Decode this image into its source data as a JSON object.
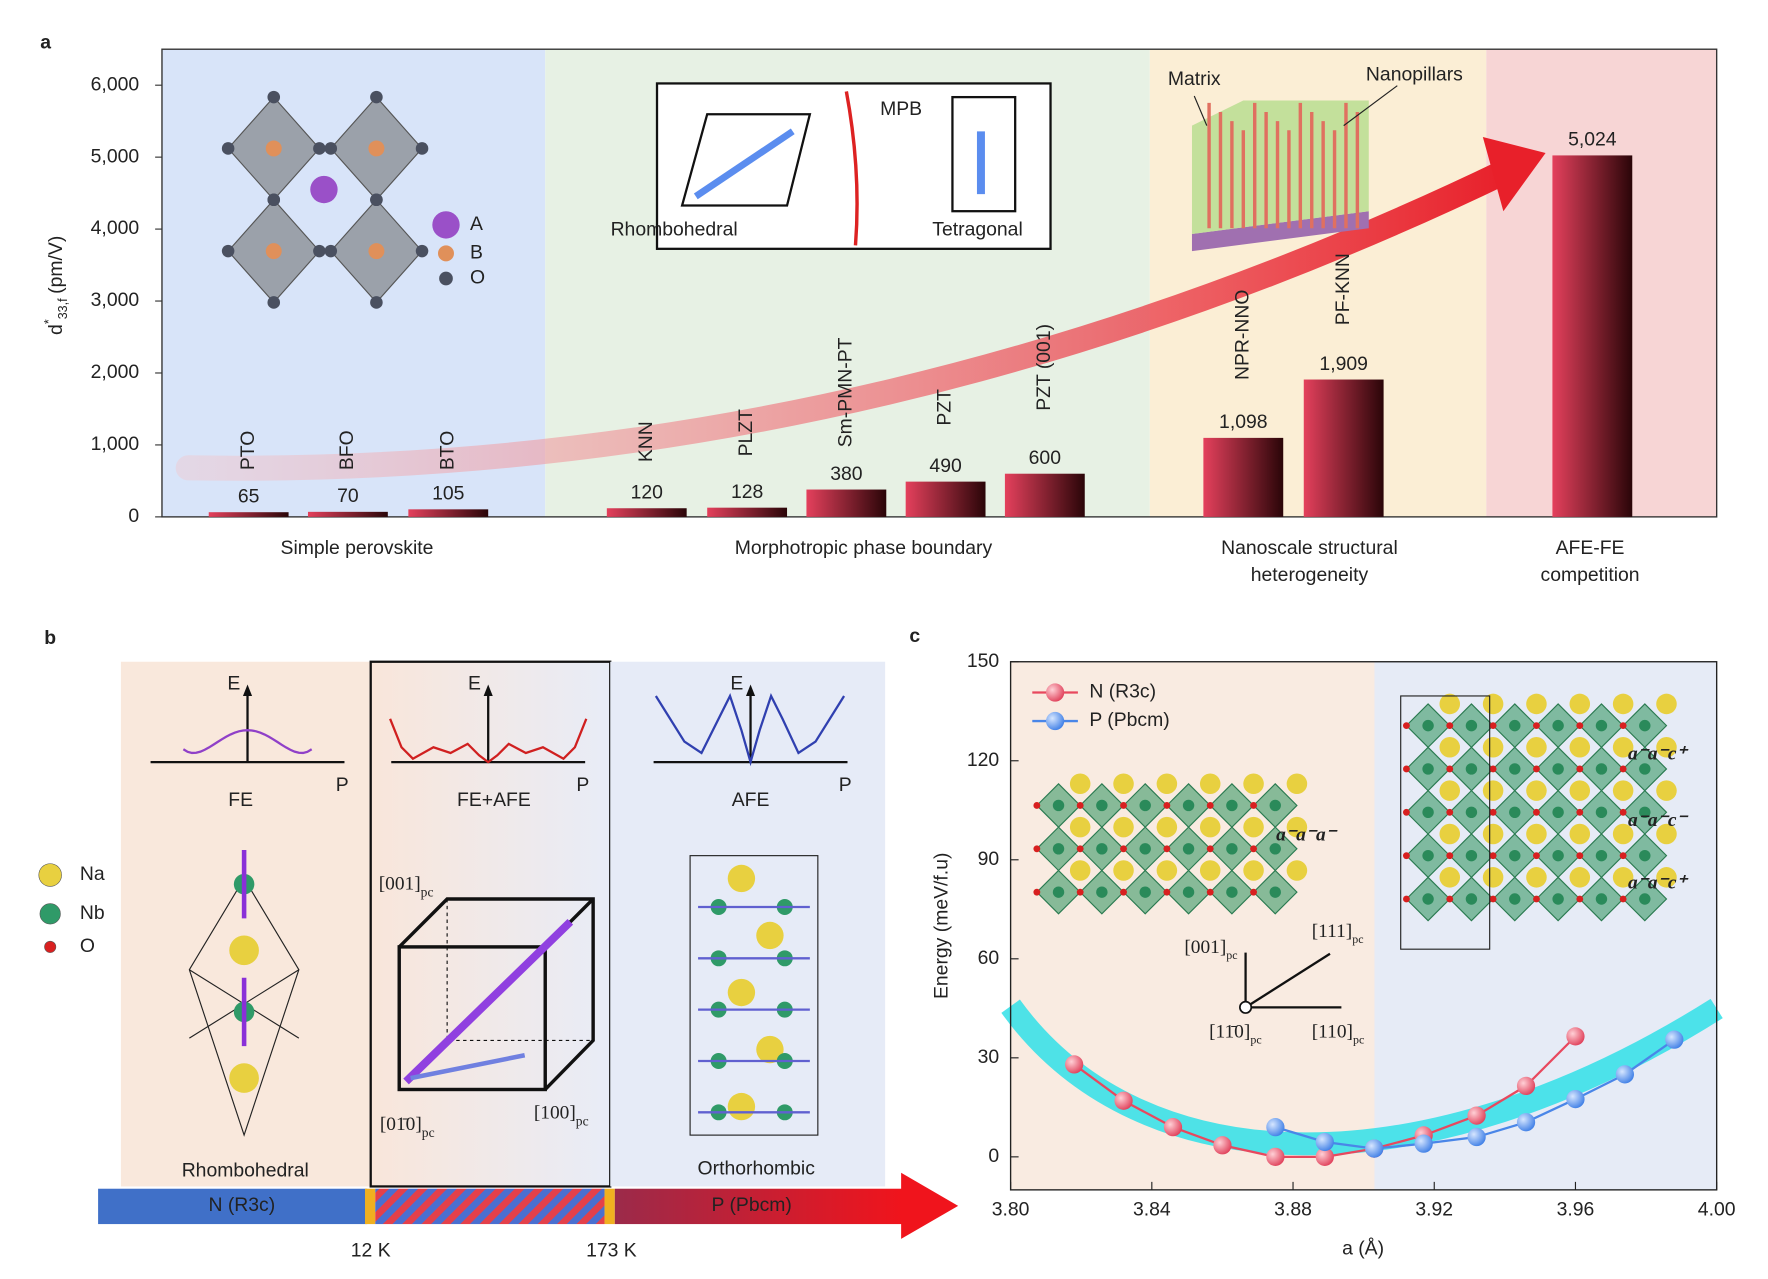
{
  "panel_labels": [
    "a",
    "b",
    "c"
  ],
  "chart_data": [
    {
      "type": "bar",
      "ylabel": {
        "symbol": "d",
        "sup": "*",
        "sub": "33,f",
        "unit": "(pm/V)"
      },
      "categories": [
        "PTO",
        "BFO",
        "BTO",
        "KNN",
        "PLZT",
        "Sm-PMN-PT",
        "PZT",
        "PZT (001)",
        "NPR-NNO",
        "PF-KNN",
        null
      ],
      "values": [
        65,
        70,
        105,
        120,
        128,
        380,
        490,
        600,
        1098,
        1909,
        5024
      ],
      "value_labels": [
        "65",
        "70",
        "105",
        "120",
        "128",
        "380",
        "490",
        "600",
        "1,098",
        "1,909",
        "5,024"
      ],
      "color": "#e4405c",
      "groups": [
        {
          "label": [
            "Simple perovskite"
          ],
          "color": "#d8e4f9"
        },
        {
          "label": [
            "Morphotropic phase boundary"
          ],
          "color": "#e7f1e4"
        },
        {
          "label": [
            "Nanoscale structural",
            "heterogeneity"
          ],
          "color": "#fbeed5"
        },
        {
          "label": [
            "AFE-FE",
            "competition"
          ],
          "color": "#f7d5d5"
        }
      ],
      "ylim": [
        0,
        6500
      ],
      "yticks": [
        0,
        {
          "value": 1000,
          "label": "1,000"
        },
        {
          "value": 2000,
          "label": "2,000"
        },
        {
          "value": 3000,
          "label": "3,000"
        },
        {
          "value": 4000,
          "label": "4,000"
        },
        {
          "value": 5000,
          "label": "5,000"
        },
        {
          "value": 6000,
          "label": "6,000"
        }
      ],
      "insets": {
        "structure_legend": [
          "A",
          "B",
          "O"
        ],
        "mpb": [
          "Rhombohedral",
          "MPB",
          "Tetragonal"
        ],
        "nanopillar": [
          "Matrix",
          "Nanopillars"
        ]
      }
    },
    {
      "type": "line",
      "xlabel": "a (Å)",
      "ylabel": "Energy (meV/f.u)",
      "xlim": [
        3.8,
        4.0
      ],
      "xticks": [
        {
          "value": 3.8,
          "label": "3.80"
        },
        3.84,
        3.88,
        3.92,
        3.96,
        {
          "value": 4.0,
          "label": "4.00"
        }
      ],
      "ylim": [
        -10,
        150
      ],
      "yticks": [
        0,
        30,
        60,
        90,
        120,
        150
      ],
      "legend": "upper left",
      "series": [
        {
          "name": "N (R3c)",
          "color": "#e8485e",
          "x": [
            3.818,
            3.832,
            3.846,
            3.86,
            3.875,
            3.889,
            3.903,
            3.917,
            3.932,
            3.946,
            3.96
          ],
          "values": [
            28,
            17,
            9,
            3.5,
            0,
            0,
            2.5,
            6.5,
            12.5,
            21.5,
            36.5
          ]
        },
        {
          "name": "P (Pbcm)",
          "color": "#4a86e8",
          "x": [
            3.875,
            3.889,
            3.903,
            3.917,
            3.932,
            3.946,
            3.96,
            3.974,
            3.988
          ],
          "values": [
            9,
            4.5,
            2.5,
            4,
            6,
            10.5,
            17.5,
            25,
            35.5
          ]
        }
      ],
      "annotations": {
        "tilts": [
          "a⁻a⁻a⁻",
          "a⁻a⁻c⁺",
          "a⁻a⁻c⁻",
          "a⁻a⁻c⁺"
        ],
        "directions": [
          {
            "text": "[001]",
            "sub": "pc"
          },
          {
            "text": "[111]",
            "sub": "pc"
          },
          {
            "text": "[11̄0]",
            "sub": "pc"
          },
          {
            "text": "[110]",
            "sub": "pc"
          }
        ]
      }
    }
  ],
  "panel_b": {
    "potentials": [
      {
        "label": "FE",
        "axes": [
          "E",
          "P"
        ]
      },
      {
        "label": "FE+AFE",
        "axes": [
          "E",
          "P"
        ]
      },
      {
        "label": "AFE",
        "axes": [
          "E",
          "P"
        ]
      }
    ],
    "atoms": [
      "Na",
      "Nb",
      "O"
    ],
    "phases": [
      "Rhombohedral",
      "Orthorhombic"
    ],
    "directions": [
      {
        "text": "[001]",
        "sub": "pc"
      },
      {
        "text": "[01̄0]",
        "sub": "pc"
      },
      {
        "text": "[100]",
        "sub": "pc"
      }
    ],
    "phase_bar": {
      "segments": [
        "N (R3c)",
        "P (Pbcm)"
      ],
      "temperatures": [
        "12 K",
        "173 K"
      ]
    }
  }
}
